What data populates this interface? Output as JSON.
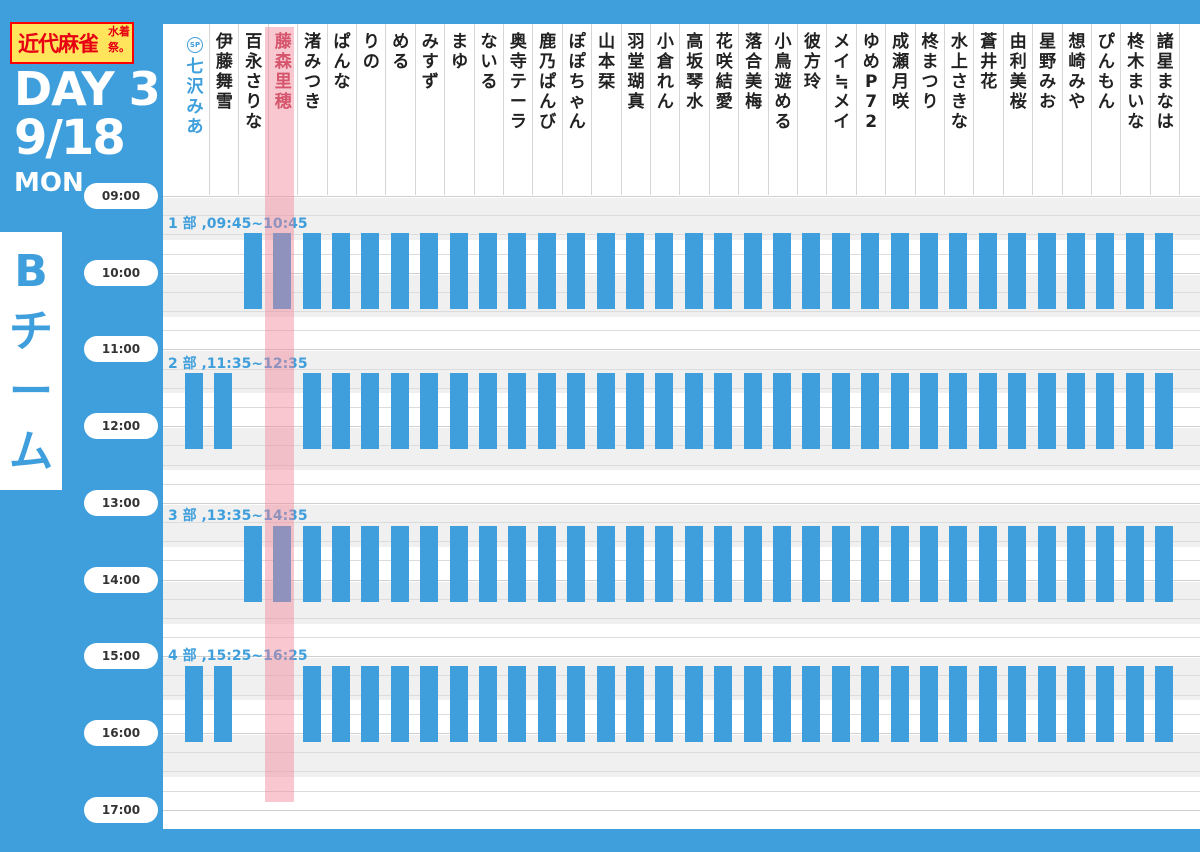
{
  "logo": {
    "main": "近代麻雀",
    "sub1": "水着",
    "sub2": "祭。"
  },
  "day": "DAY 3",
  "date": "9/18",
  "weekday": "MON",
  "team": "Bチーム",
  "sp_badge": "SP",
  "highlight_player": "藤森里穂",
  "players": [
    "七沢みあ",
    "伊藤舞雪",
    "百永さりな",
    "藤森里穂",
    "渚みつき",
    "ぱんな",
    "りの",
    "める",
    "みすず",
    "まゆ",
    "ないる",
    "奥寺テーラ",
    "鹿乃ぱんび",
    "ぽぽちゃん",
    "山本栞",
    "羽堂瑚真",
    "小倉れん",
    "高坂琴水",
    "花咲結愛",
    "落合美梅",
    "小鳥遊める",
    "彼方玲",
    "メイ≒メイ",
    "ゆめP72",
    "成瀬月咲",
    "柊まつり",
    "水上さきな",
    "蒼井花",
    "由利美桜",
    "星野みお",
    "想崎みや",
    "ぴんもん",
    "柊木まいな",
    "諸星まなは"
  ],
  "times": [
    "09:00",
    "10:00",
    "11:00",
    "12:00",
    "13:00",
    "14:00",
    "15:00",
    "16:00",
    "17:00"
  ],
  "sessions": [
    {
      "label": "1 部 ,09:45~10:45",
      "active": [
        2,
        3,
        4,
        5,
        6,
        7,
        8,
        9,
        10,
        11,
        12,
        13,
        14,
        15,
        16,
        17,
        18,
        19,
        20,
        21,
        22,
        23,
        24,
        25,
        26,
        27,
        28,
        29,
        30,
        31,
        32,
        33
      ]
    },
    {
      "label": "2 部 ,11:35~12:35",
      "active": [
        0,
        1,
        4,
        5,
        6,
        7,
        8,
        9,
        10,
        11,
        12,
        13,
        14,
        15,
        16,
        17,
        18,
        19,
        20,
        21,
        22,
        23,
        24,
        25,
        26,
        27,
        28,
        29,
        30,
        31,
        32,
        33
      ]
    },
    {
      "label": "3 部 ,13:35~14:35",
      "active": [
        2,
        3,
        4,
        5,
        6,
        7,
        8,
        9,
        10,
        11,
        12,
        13,
        14,
        15,
        16,
        17,
        18,
        19,
        20,
        21,
        22,
        23,
        24,
        25,
        26,
        27,
        28,
        29,
        30,
        31,
        32,
        33
      ]
    },
    {
      "label": "4 部 ,15:25~16:25",
      "active": [
        0,
        1,
        4,
        5,
        6,
        7,
        8,
        9,
        10,
        11,
        12,
        13,
        14,
        15,
        16,
        17,
        18,
        19,
        20,
        21,
        22,
        23,
        24,
        25,
        26,
        27,
        28,
        29,
        30,
        31,
        32,
        33
      ]
    }
  ]
}
